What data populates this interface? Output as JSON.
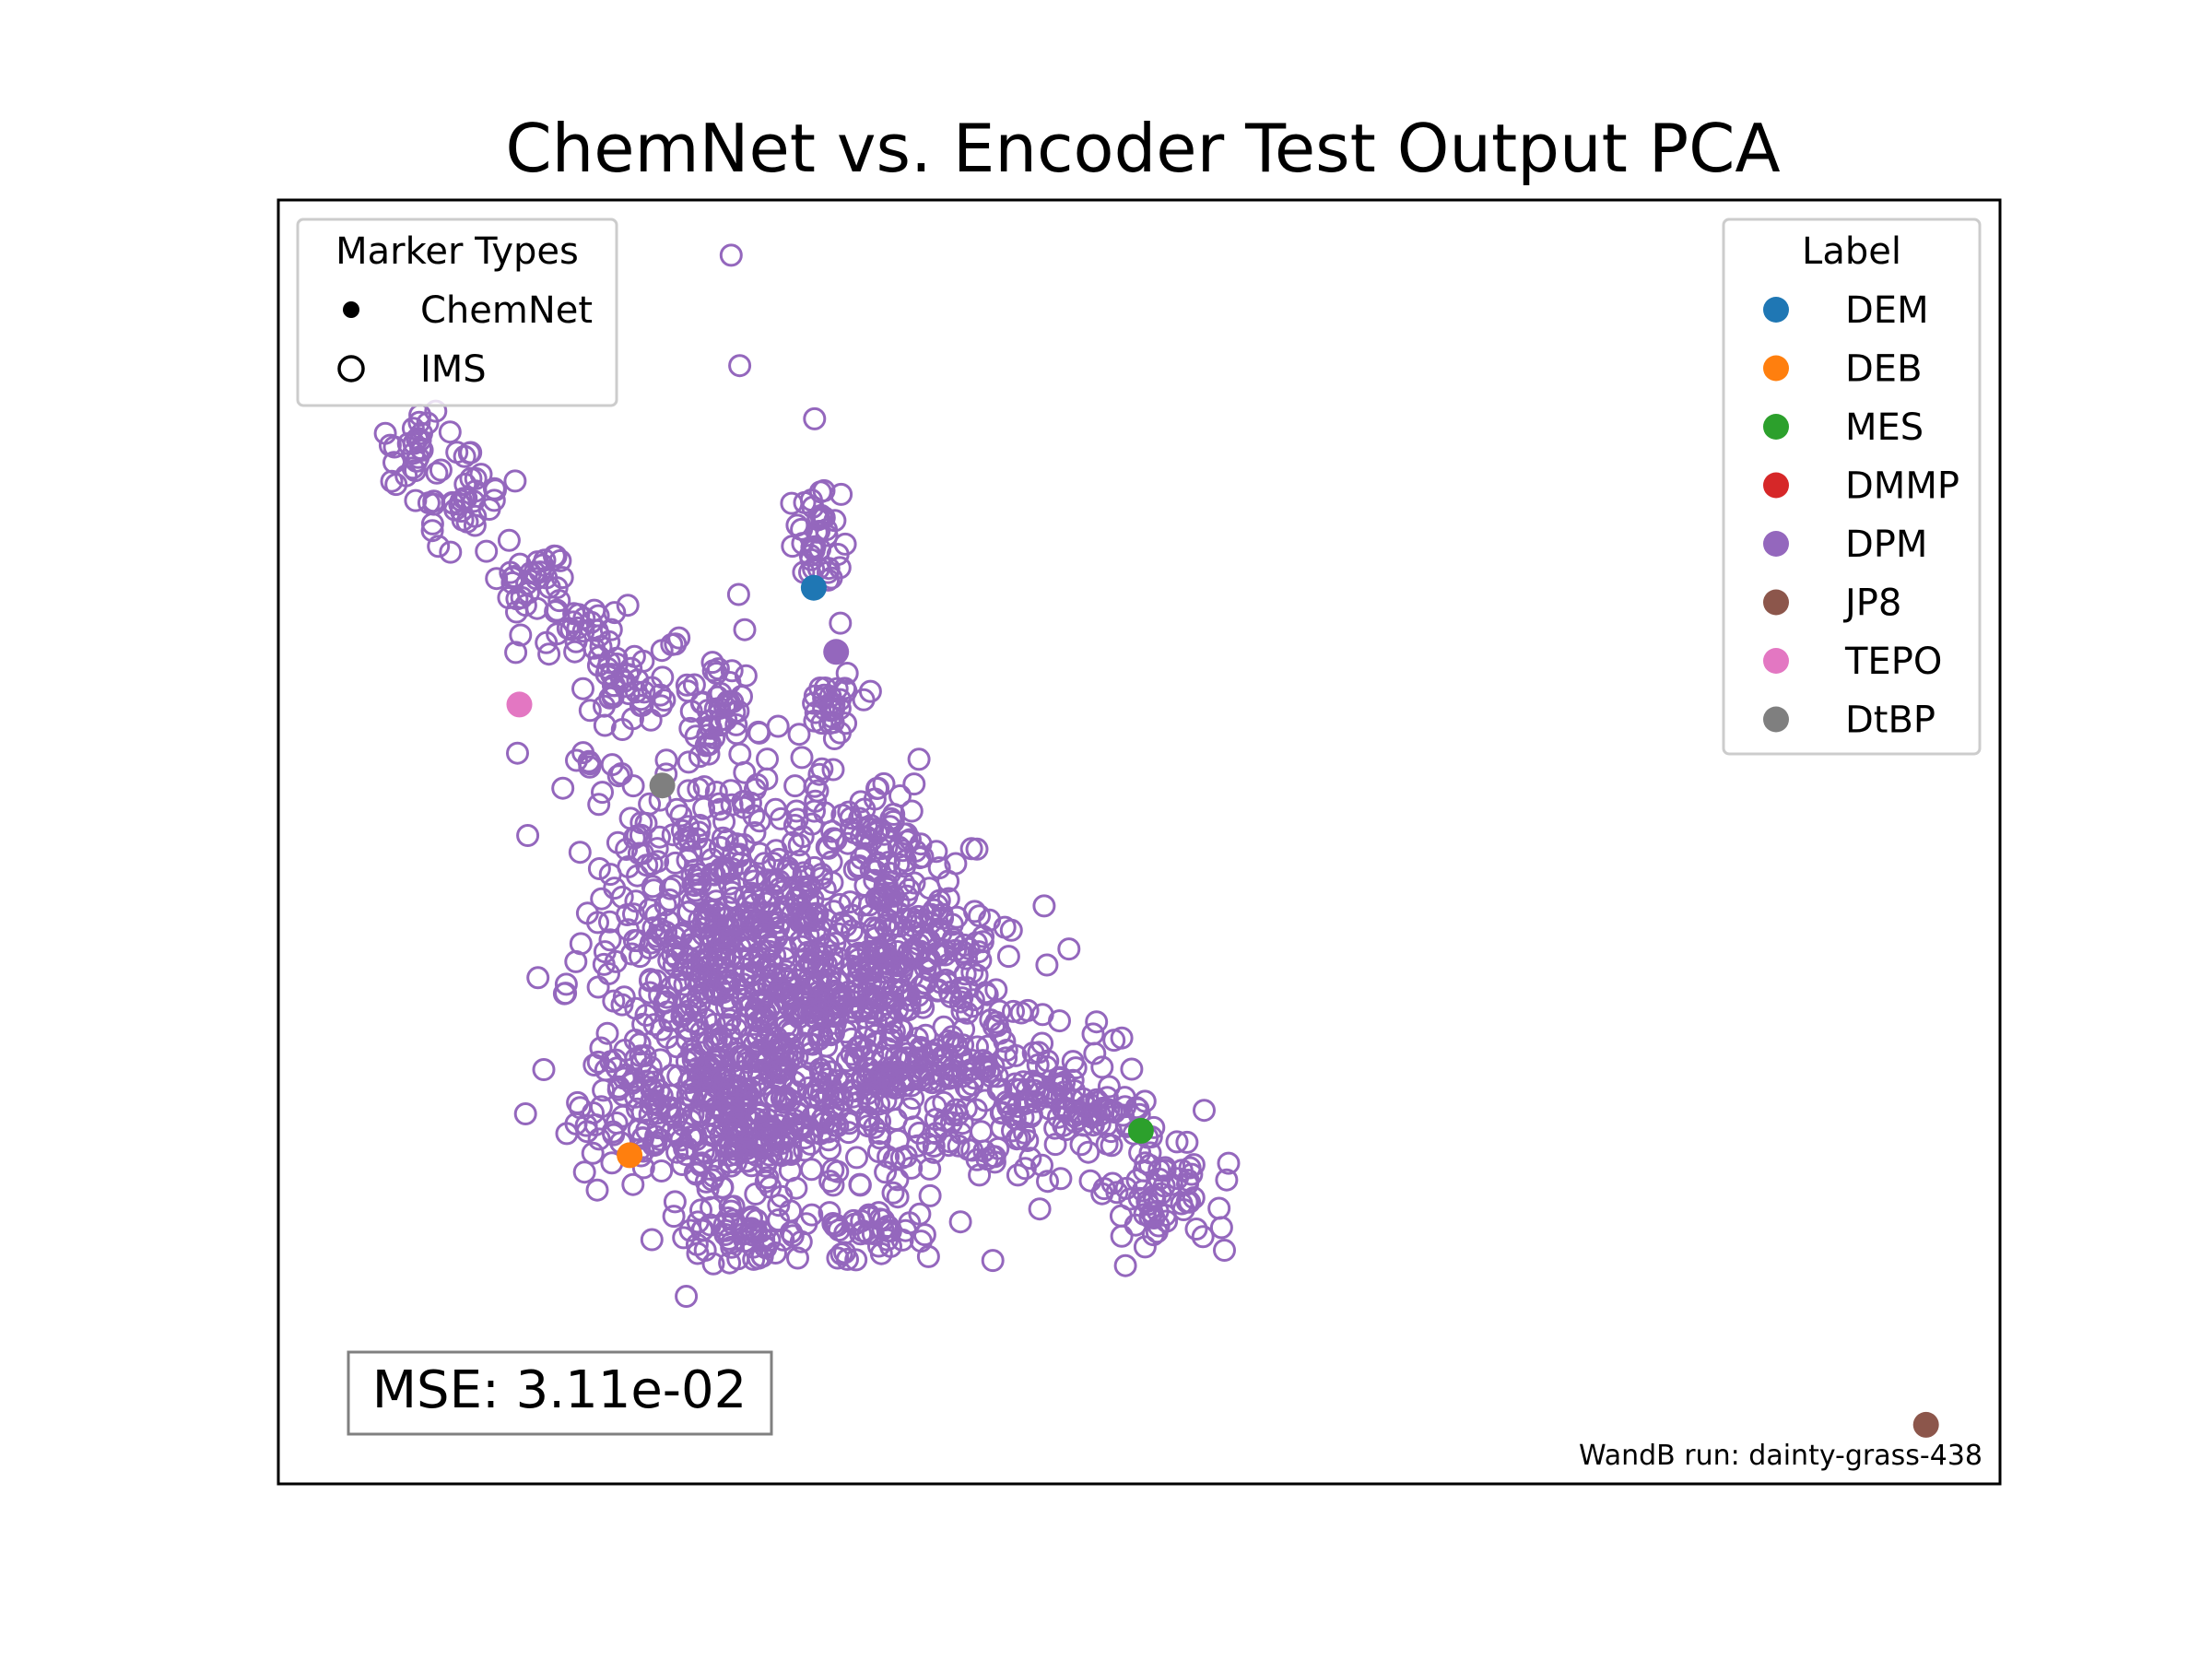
{
  "chart_data": {
    "type": "scatter",
    "title": "ChemNet vs. Encoder Test Output PCA",
    "xlabel": "",
    "ylabel": "",
    "axes_visible": false,
    "xlim": [
      0,
      100
    ],
    "ylim": [
      0,
      100
    ],
    "grid": false,
    "marker_legend": {
      "title": "Marker Types",
      "placement": "top-left",
      "entries": [
        {
          "label": "ChemNet",
          "marker": "filled-dot"
        },
        {
          "label": "IMS",
          "marker": "open-circle"
        }
      ]
    },
    "label_legend": {
      "title": "Label",
      "placement": "top-right",
      "entries": [
        {
          "label": "DEM",
          "color": "#1f77b4"
        },
        {
          "label": "DEB",
          "color": "#ff7f0e"
        },
        {
          "label": "MES",
          "color": "#2ca02c"
        },
        {
          "label": "DMMP",
          "color": "#d62728"
        },
        {
          "label": "DPM",
          "color": "#9467bd"
        },
        {
          "label": "JP8",
          "color": "#8c564b"
        },
        {
          "label": "TEPO",
          "color": "#e377c2"
        },
        {
          "label": "DtBP",
          "color": "#7f7f7f"
        }
      ]
    },
    "chemnet_points": [
      {
        "label": "DEM",
        "x": 31.1,
        "y": 69.8
      },
      {
        "label": "DEB",
        "x": 20.4,
        "y": 25.6
      },
      {
        "label": "MES",
        "x": 50.1,
        "y": 27.5
      },
      {
        "label": "DPM",
        "x": 32.4,
        "y": 64.8
      },
      {
        "label": "JP8",
        "x": 95.7,
        "y": 4.6
      },
      {
        "label": "TEPO",
        "x": 14.0,
        "y": 60.7
      },
      {
        "label": "DtBP",
        "x": 22.3,
        "y": 54.4
      }
    ],
    "ims_series": {
      "label": "DPM",
      "clusters": [
        {
          "x": 26.3,
          "y": 95.7,
          "sx": 0.1,
          "sy": 0.1,
          "n": 1
        },
        {
          "x": 26.8,
          "y": 87.1,
          "sx": 0.1,
          "sy": 0.1,
          "n": 1
        },
        {
          "x": 8.0,
          "y": 80.5,
          "sx": 1.4,
          "sy": 1.5,
          "n": 30
        },
        {
          "x": 11.0,
          "y": 76.5,
          "sx": 1.3,
          "sy": 1.5,
          "n": 35
        },
        {
          "x": 14.5,
          "y": 70.5,
          "sx": 1.0,
          "sy": 1.3,
          "n": 30
        },
        {
          "x": 17.5,
          "y": 67.0,
          "sx": 1.2,
          "sy": 1.3,
          "n": 30
        },
        {
          "x": 19.5,
          "y": 62.5,
          "sx": 1.3,
          "sy": 1.2,
          "n": 20
        },
        {
          "x": 18.0,
          "y": 56.0,
          "sx": 0.3,
          "sy": 0.3,
          "n": 5
        },
        {
          "x": 31.6,
          "y": 73.5,
          "sx": 0.8,
          "sy": 2.5,
          "n": 40
        },
        {
          "x": 25.8,
          "y": 60.7,
          "sx": 0.8,
          "sy": 1.5,
          "n": 30
        },
        {
          "x": 32.0,
          "y": 60.7,
          "sx": 1.0,
          "sy": 1.5,
          "n": 30
        },
        {
          "x": 35.0,
          "y": 50.0,
          "sx": 1.2,
          "sy": 3.0,
          "n": 60
        },
        {
          "x": 38.0,
          "y": 42.5,
          "sx": 2.0,
          "sy": 2.5,
          "n": 80
        },
        {
          "x": 27.0,
          "y": 45.0,
          "sx": 4.5,
          "sy": 6.0,
          "n": 450
        },
        {
          "x": 32.0,
          "y": 36.5,
          "sx": 5.0,
          "sy": 4.0,
          "n": 400
        },
        {
          "x": 26.0,
          "y": 29.0,
          "sx": 4.0,
          "sy": 3.0,
          "n": 350
        },
        {
          "x": 40.5,
          "y": 31.0,
          "sx": 3.5,
          "sy": 2.3,
          "n": 150
        },
        {
          "x": 47.5,
          "y": 29.0,
          "sx": 2.0,
          "sy": 1.5,
          "n": 60
        },
        {
          "x": 51.5,
          "y": 22.5,
          "sx": 1.8,
          "sy": 2.2,
          "n": 60
        },
        {
          "x": 27.0,
          "y": 19.5,
          "sx": 2.0,
          "sy": 1.2,
          "n": 60
        },
        {
          "x": 34.5,
          "y": 20.0,
          "sx": 1.5,
          "sy": 1.3,
          "n": 40
        },
        {
          "x": 40.0,
          "y": 24.0,
          "sx": 3.0,
          "sy": 2.0,
          "n": 40
        },
        {
          "x": 22.0,
          "y": 63.0,
          "sx": 3.0,
          "sy": 3.0,
          "n": 25
        },
        {
          "x": 41.5,
          "y": 17.4,
          "sx": 0.1,
          "sy": 0.1,
          "n": 1
        },
        {
          "x": 49.2,
          "y": 17.0,
          "sx": 0.1,
          "sy": 0.1,
          "n": 1
        }
      ]
    },
    "annotations": {
      "mse_label": "MSE: 3.11e-02",
      "wandb_label": "WandB run: dainty-grass-438"
    }
  }
}
